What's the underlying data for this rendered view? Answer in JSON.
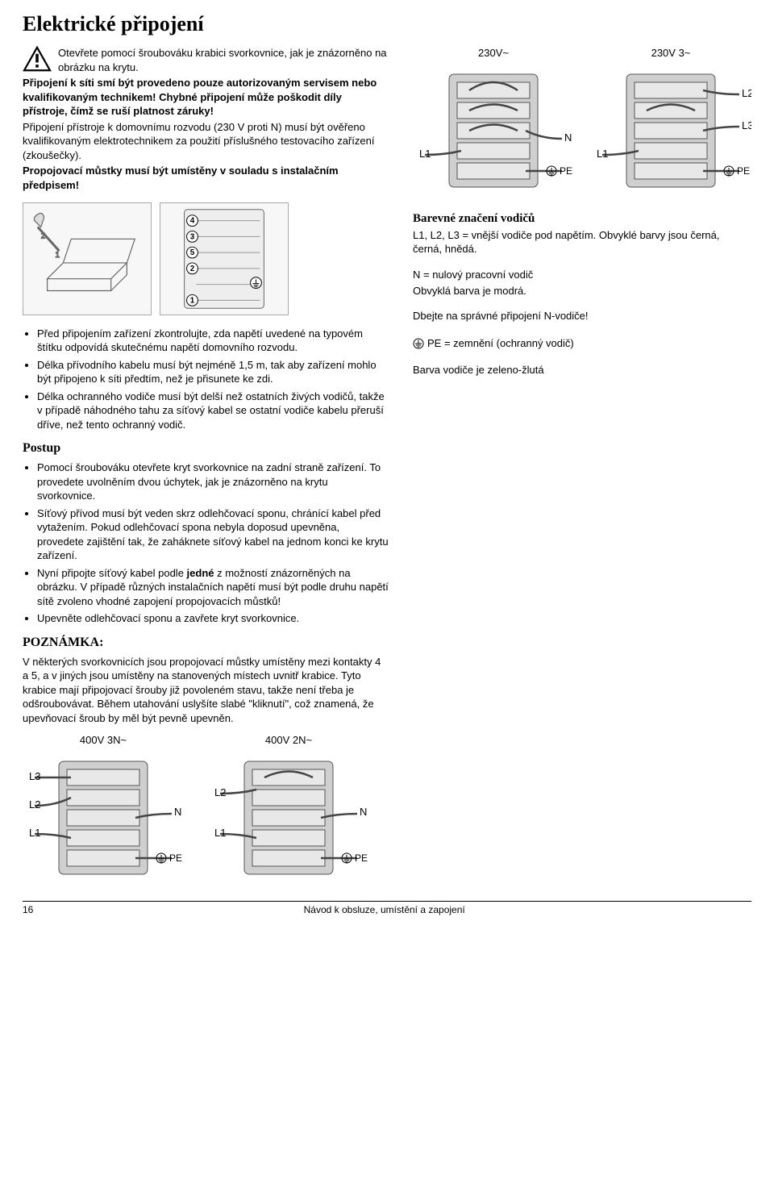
{
  "title": "Elektrické připojení",
  "intro1": "Otevřete pomocí šroubováku krabici svorkovnice, jak je znázorněno na obrázku na krytu.",
  "intro2": "Připojení k síti smí být provedeno pouze autorizovaným servisem nebo kvalifikovaným technikem! Chybné připojení může poškodit díly přístroje, čímž se ruší platnost záruky!",
  "intro3": "Připojení přístroje k domovnímu rozvodu (230 V proti N) musí být ověřeno kvalifikovaným elektrotechnikem za použití příslušného testovacího zařízení (zkoušečky).",
  "intro4": "Propojovací můstky musí být umístěny v souladu s instalačním předpisem!",
  "bullets1": [
    "Před připojením zařízení zkontrolujte, zda napětí uvedené na typovém štítku odpovídá skutečnému napětí domovního rozvodu.",
    "Délka přívodního kabelu musí být nejméně 1,5 m, tak aby zařízení mohlo být připojeno k síti předtím, než je přisunete ke zdi.",
    "Délka ochranného vodiče musí být delší než ostatních živých vodičů, takže v případě náhodného tahu za síťový kabel se ostatní vodiče kabelu přeruší dříve, než tento ochranný vodič."
  ],
  "procedure_heading": "Postup",
  "bullets2": [
    "Pomocí šroubováku otevřete kryt svorkovnice na zadní straně zařízení. To provedete uvolněním dvou úchytek, jak je znázorněno na krytu svorkovnice.",
    "Síťový přívod musí být veden skrz odlehčovací sponu, chránící kabel před vytažením. Pokud odlehčovací spona nebyla doposud upevněna, provedete zajištění tak, že zaháknete síťový kabel na jednom konci ke krytu zařízení.",
    "Nyní připojte síťový kabel podle jedné z možností znázorněných na obrázku. V případě různých instalačních napětí musí být podle druhu napětí sítě zvoleno vhodné zapojení propojovacích můstků!",
    "Upevněte odlehčovací sponu a zavřete kryt svorkovnice."
  ],
  "bullets2_bold_word": "jedné",
  "note_heading": "POZNÁMKA:",
  "note_text": "V některých svorkovnicích jsou propojovací můstky umístěny mezi kontakty 4 a 5, a v jiných jsou umístěny na stanovených místech uvnitř krabice. Tyto krabice mají připojovací šrouby již povoleném stavu, takže není třeba je odšroubovávat. Během utahování uslyšíte slabé \"kliknutí\", což znamená, že upevňovací šroub by měl být pevně upevněn.",
  "right_top_labels": {
    "a": "230V~",
    "b": "230V 3~"
  },
  "colors_heading": "Barevné značení vodičů",
  "colors_l123": "L1, L2, L3 = vnější vodiče pod napětím. Obvyklé barvy jsou černá, černá, hnědá.",
  "colors_n1": "N = nulový pracovní vodič",
  "colors_n2": "Obvyklá barva je modrá.",
  "colors_warn": "Dbejte na správné připojení N-vodiče!",
  "colors_pe": "PE = zemnění (ochranný vodič)",
  "colors_pe_color": "Barva vodiče je zeleno-žlutá",
  "bottom_labels": {
    "a": "400V 3N~",
    "b": "400V 2N~"
  },
  "footer_page": "16",
  "footer_text": "Návod k obsluze, umístění a  zapojení",
  "terminal_diagram": {
    "labels_left": {
      "L1": "L1",
      "N": "N",
      "PE": "PE"
    },
    "labels_right": {
      "L1": "L1",
      "L2": "L2",
      "L3": "L3",
      "PE": "PE"
    },
    "labels_400_3n": {
      "L1": "L1",
      "L2": "L2",
      "L3": "L3",
      "N": "N",
      "PE": "PE"
    },
    "labels_400_2n": {
      "L1": "L1",
      "L2": "L2",
      "N": "N",
      "PE": "PE"
    },
    "box_fill": "#cfcfcf",
    "box_stroke": "#555",
    "wire_color": "#444"
  }
}
